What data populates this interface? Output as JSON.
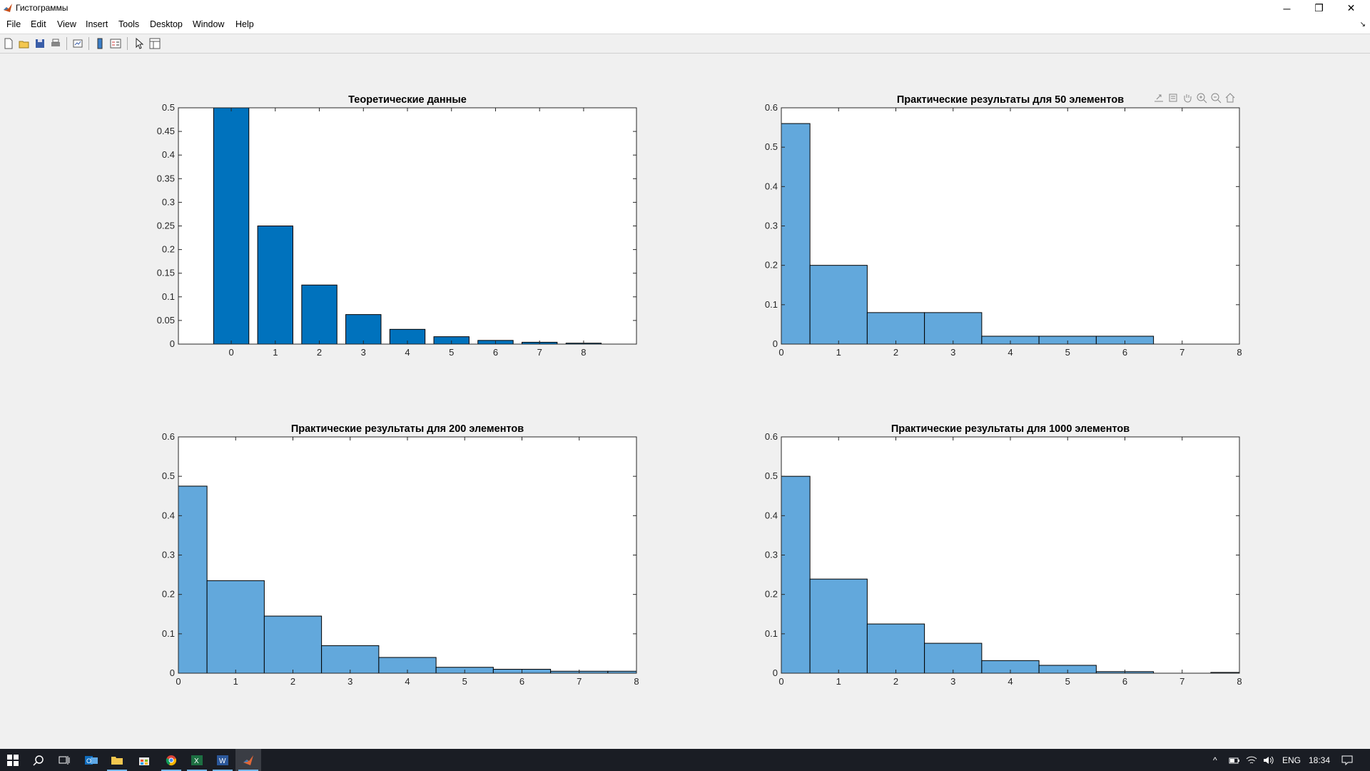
{
  "window": {
    "title": "Гистограммы",
    "minimize_glyph": "─",
    "restore_glyph": "❐",
    "close_glyph": "✕"
  },
  "menu": {
    "items": [
      "File",
      "Edit",
      "View",
      "Insert",
      "Tools",
      "Desktop",
      "Window",
      "Help"
    ]
  },
  "toolbar": {
    "icons": [
      "new-figure-icon",
      "open-file-icon",
      "save-icon",
      "print-icon",
      "link-plot-icon",
      "insert-colorbar-icon",
      "insert-legend-icon",
      "edit-plot-icon",
      "property-inspector-icon"
    ]
  },
  "axes_toolbar": {
    "icons": [
      "export-icon",
      "brush-icon",
      "pan-icon",
      "zoom-in-icon",
      "zoom-out-icon",
      "home-icon"
    ]
  },
  "colors": {
    "bar_theory": "#0072bd",
    "histogram": "#62a8dc",
    "edge": "#000000",
    "figure_bg": "#f0f0f0",
    "taskbar": "#1a1d24"
  },
  "chart_data": [
    {
      "type": "bar",
      "title": "Теоретические данные",
      "categories": [
        "0",
        "1",
        "2",
        "3",
        "4",
        "5",
        "6",
        "7",
        "8"
      ],
      "values": [
        0.5,
        0.25,
        0.125,
        0.0625,
        0.03125,
        0.015625,
        0.0078125,
        0.00390625,
        0.001953125
      ],
      "xlim": [
        -1.2,
        9.2
      ],
      "ylim": [
        0,
        0.5
      ],
      "yticks": [
        "0",
        "0.05",
        "0.1",
        "0.15",
        "0.2",
        "0.25",
        "0.3",
        "0.35",
        "0.4",
        "0.45",
        "0.5"
      ],
      "xticks": [
        "0",
        "1",
        "2",
        "3",
        "4",
        "5",
        "6",
        "7",
        "8"
      ]
    },
    {
      "type": "bar",
      "title": "Практические результаты для 50 элементов",
      "bin_edges": [
        0,
        0.5,
        1.5,
        2.5,
        3.5,
        4.5,
        5.5,
        6.5,
        7.5,
        8
      ],
      "values": [
        0.56,
        0.2,
        0.08,
        0.08,
        0.02,
        0.02,
        0.02,
        0,
        0
      ],
      "xlim": [
        0,
        8
      ],
      "ylim": [
        0,
        0.6
      ],
      "yticks": [
        "0",
        "0.1",
        "0.2",
        "0.3",
        "0.4",
        "0.5",
        "0.6"
      ],
      "xticks": [
        "0",
        "1",
        "2",
        "3",
        "4",
        "5",
        "6",
        "7",
        "8"
      ]
    },
    {
      "type": "bar",
      "title": "Практические результаты для 200 элементов",
      "bin_edges": [
        0,
        0.5,
        1.5,
        2.5,
        3.5,
        4.5,
        5.5,
        6.5,
        7.5,
        8
      ],
      "values": [
        0.475,
        0.235,
        0.145,
        0.07,
        0.04,
        0.015,
        0.01,
        0.005,
        0.005
      ],
      "xlim": [
        0,
        8
      ],
      "ylim": [
        0,
        0.6
      ],
      "yticks": [
        "0",
        "0.1",
        "0.2",
        "0.3",
        "0.4",
        "0.5",
        "0.6"
      ],
      "xticks": [
        "0",
        "1",
        "2",
        "3",
        "4",
        "5",
        "6",
        "7",
        "8"
      ]
    },
    {
      "type": "bar",
      "title": "Практические результаты для 1000 элементов",
      "bin_edges": [
        0,
        0.5,
        1.5,
        2.5,
        3.5,
        4.5,
        5.5,
        6.5,
        7.5,
        8
      ],
      "values": [
        0.5,
        0.239,
        0.125,
        0.076,
        0.032,
        0.02,
        0.004,
        0,
        0.002
      ],
      "xlim": [
        0,
        8
      ],
      "ylim": [
        0,
        0.6
      ],
      "yticks": [
        "0",
        "0.1",
        "0.2",
        "0.3",
        "0.4",
        "0.5",
        "0.6"
      ],
      "xticks": [
        "0",
        "1",
        "2",
        "3",
        "4",
        "5",
        "6",
        "7",
        "8"
      ]
    }
  ],
  "taskbar": {
    "apps": [
      "start-icon",
      "search-icon",
      "task-view-icon",
      "outlook-icon",
      "file-explorer-icon",
      "store-icon",
      "chrome-icon",
      "excel-icon",
      "word-icon",
      "matlab-icon"
    ],
    "tray": {
      "language": "ENG",
      "time": "18:34",
      "chevron": "^"
    }
  }
}
